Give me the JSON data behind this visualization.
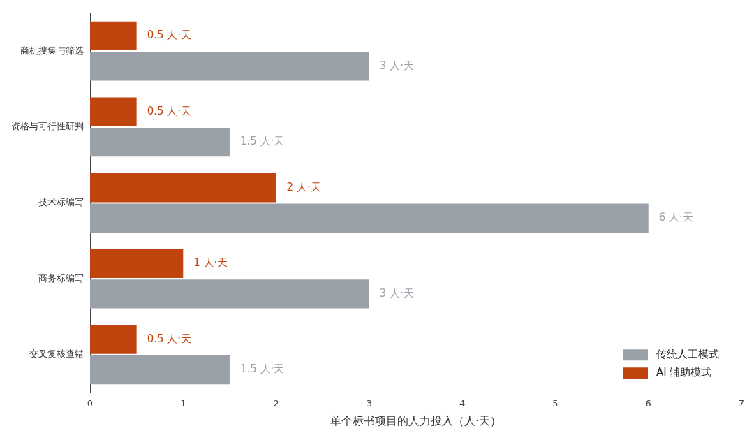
{
  "chart_data": {
    "type": "bar",
    "orientation": "horizontal",
    "xlabel": "单个标书项目的人力投入（人·天）",
    "categories": [
      "商机搜集与筛选",
      "资格与可行性研判",
      "技术标编写",
      "商务标编写",
      "交叉复核查错"
    ],
    "series": [
      {
        "name": "传统人工模式",
        "color": "#9aa0a8",
        "values": [
          3,
          1.5,
          6,
          3,
          1.5
        ],
        "value_labels": [
          "3 人·天",
          "1.5 人·天",
          "6 人·天",
          "3 人·天",
          "1.5 人·天"
        ]
      },
      {
        "name": "AI 辅助模式",
        "color": "#c0440e",
        "values": [
          0.5,
          0.5,
          2,
          1,
          0.5
        ],
        "value_labels": [
          "0.5 人·天",
          "0.5 人·天",
          "2 人·天",
          "1 人·天",
          "0.5 人·天"
        ]
      }
    ],
    "xlim": [
      0,
      7
    ],
    "xticks": [
      0,
      1,
      2,
      3,
      4,
      5,
      6,
      7
    ],
    "grid": false,
    "legend": "bottom right"
  }
}
